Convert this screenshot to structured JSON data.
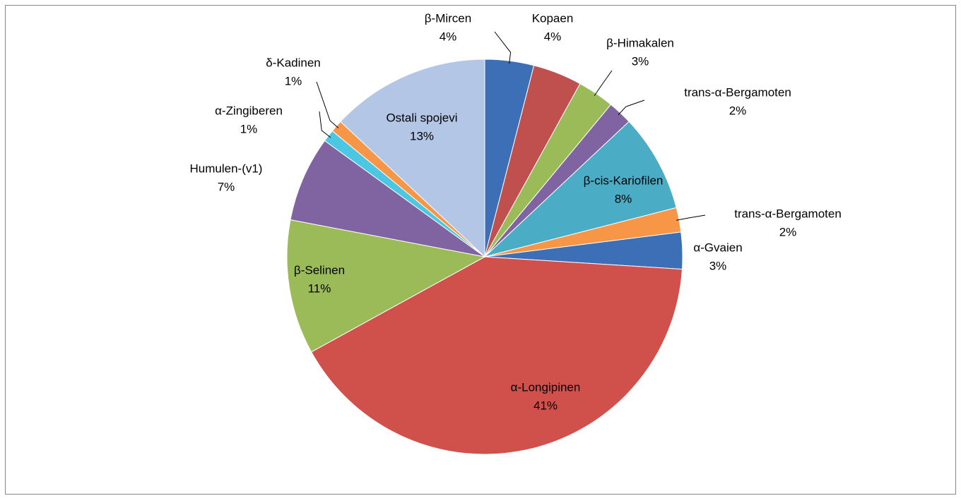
{
  "chart_data": {
    "type": "pie",
    "categories": [
      "β-Mircen",
      "Kopaen",
      "β-Himakalen",
      "trans-α-Bergamoten",
      "β-cis-Kariofilen",
      "trans-α-Bergamoten",
      "α-Gvaien",
      "α-Longipinen",
      "β-Selinen",
      "Humulen-(v1)",
      "α-Zingiberen",
      "δ-Kadinen",
      "Ostali spojevi"
    ],
    "values": [
      4,
      4,
      3,
      2,
      8,
      2,
      3,
      41,
      11,
      7,
      1,
      1,
      13
    ],
    "value_labels": [
      "4%",
      "4%",
      "3%",
      "2%",
      "8%",
      "2%",
      "3%",
      "41%",
      "11%",
      "7%",
      "1%",
      "1%",
      "13%"
    ],
    "colors": [
      "#3d6fb6",
      "#c0504d",
      "#9bbb59",
      "#8064a2",
      "#4bacc6",
      "#f79646",
      "#3d6fb6",
      "#d0504c",
      "#9bbb59",
      "#8064a2",
      "#4bc6e3",
      "#f79646",
      "#b3c6e6"
    ]
  }
}
